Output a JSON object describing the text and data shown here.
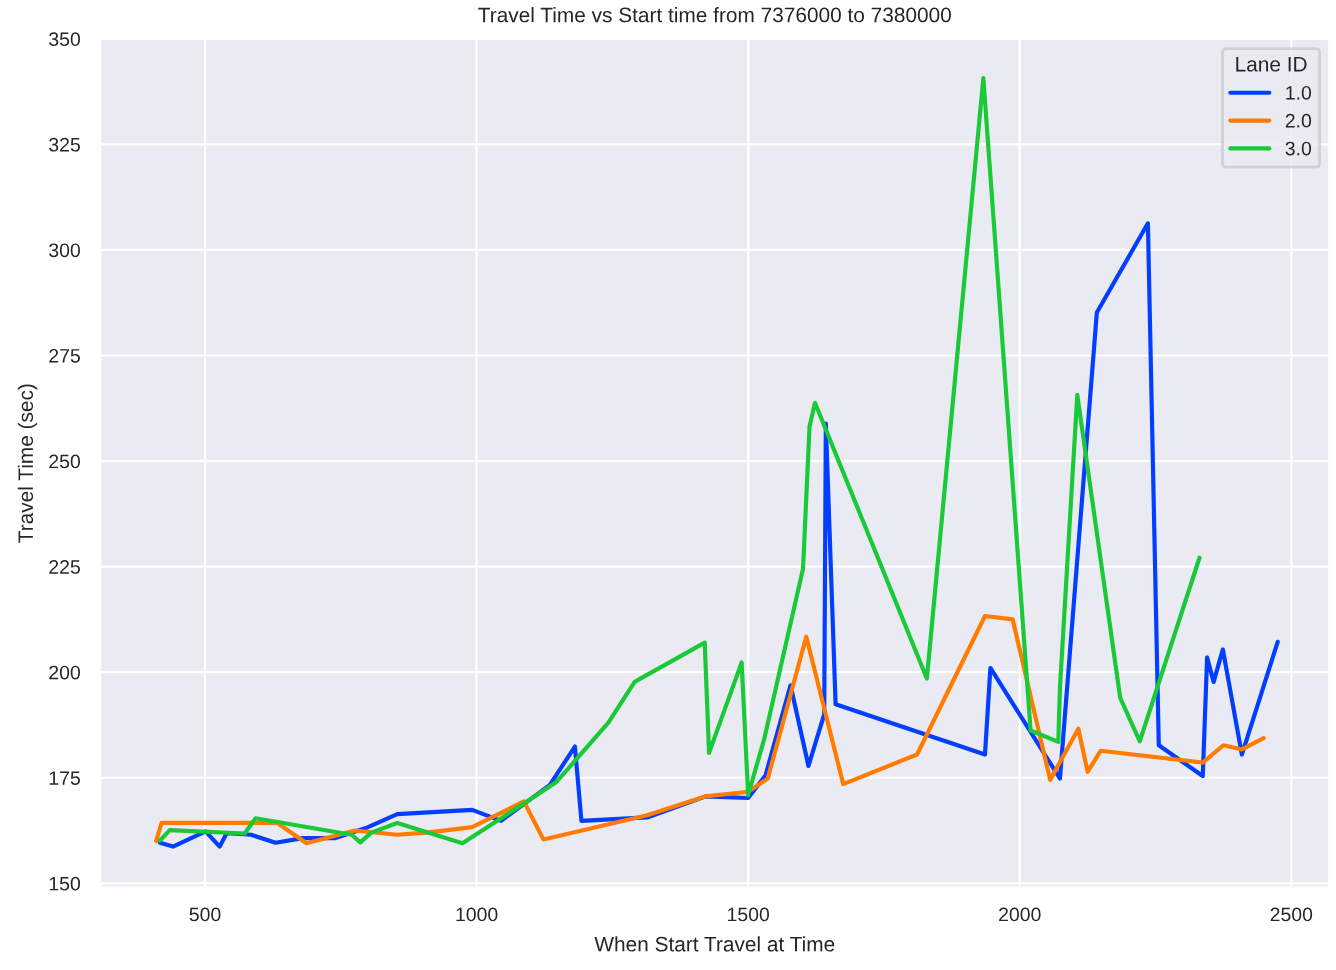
{
  "chart_data": {
    "type": "line",
    "title": "Travel Time vs Start time from 7376000 to 7380000",
    "xlabel": "When Start Travel at Time",
    "ylabel": "Travel Time (sec)",
    "legend_title": "Lane ID",
    "xlim": [
      307,
      2570
    ],
    "ylim": [
      149,
      350
    ],
    "xticks": [
      500,
      1000,
      1500,
      2000,
      2500
    ],
    "yticks": [
      150,
      175,
      200,
      225,
      250,
      275,
      300,
      325,
      350
    ],
    "grid": true,
    "legend": "top right",
    "series": [
      {
        "name": "1.0",
        "color": "#023eff",
        "x": [
          417,
          441,
          501,
          527,
          540,
          585,
          630,
          680,
          740,
          800,
          854,
          992,
          1045,
          1135,
          1181,
          1193,
          1314,
          1422,
          1500,
          1532,
          1578,
          1611,
          1640,
          1643,
          1661,
          1936,
          1946,
          2074,
          2142,
          2236,
          2256,
          2337,
          2345,
          2357,
          2374,
          2409,
          2475
        ],
        "values": [
          159.6,
          158.7,
          162.3,
          158.7,
          161.9,
          161.5,
          159.6,
          160.7,
          160.7,
          163.3,
          166.4,
          167.4,
          164.8,
          173.3,
          182.4,
          164.8,
          165.6,
          170.6,
          170.2,
          175.6,
          196.9,
          177.8,
          190,
          258.9,
          192.4,
          180.5,
          201,
          174.8,
          285.2,
          306.3,
          182.7,
          175.4,
          203.5,
          197.7,
          205.4,
          180.5,
          207.2
        ]
      },
      {
        "name": "2.0",
        "color": "#ff7c00",
        "x": [
          410,
          420,
          633,
          687,
          776,
          854,
          908,
          992,
          1087,
          1123,
          1314,
          1422,
          1500,
          1536,
          1607,
          1675,
          1811,
          1936,
          1987,
          2056,
          2108,
          2125,
          2149,
          2337,
          2375,
          2409,
          2449
        ],
        "values": [
          160,
          164.3,
          164.3,
          159.5,
          162.5,
          161.5,
          162,
          163.3,
          169.4,
          160.4,
          166.1,
          170.6,
          171.7,
          174.8,
          208.4,
          173.5,
          180.5,
          213.3,
          212.5,
          174.5,
          186.6,
          176.4,
          181.4,
          178.6,
          182.7,
          181.7,
          184.4
        ]
      },
      {
        "name": "3.0",
        "color": "#1ac938",
        "x": [
          417,
          435,
          573,
          593,
          770,
          786,
          806,
          854,
          974,
          1075,
          1147,
          1243,
          1291,
          1420,
          1428,
          1488,
          1500,
          1530,
          1601,
          1613,
          1623,
          1829,
          1933,
          2020,
          2071,
          2074,
          2106,
          2185,
          2221,
          2331
        ],
        "values": [
          160.1,
          162.6,
          161.8,
          165.4,
          161.5,
          159.7,
          162,
          164.3,
          159.5,
          167.9,
          174,
          188.1,
          197.7,
          207,
          180.9,
          202.3,
          170.9,
          184.4,
          224.5,
          258.2,
          263.8,
          198.5,
          340.7,
          186.2,
          183.5,
          196.2,
          265.7,
          193.9,
          183.6,
          227.1
        ]
      }
    ]
  }
}
